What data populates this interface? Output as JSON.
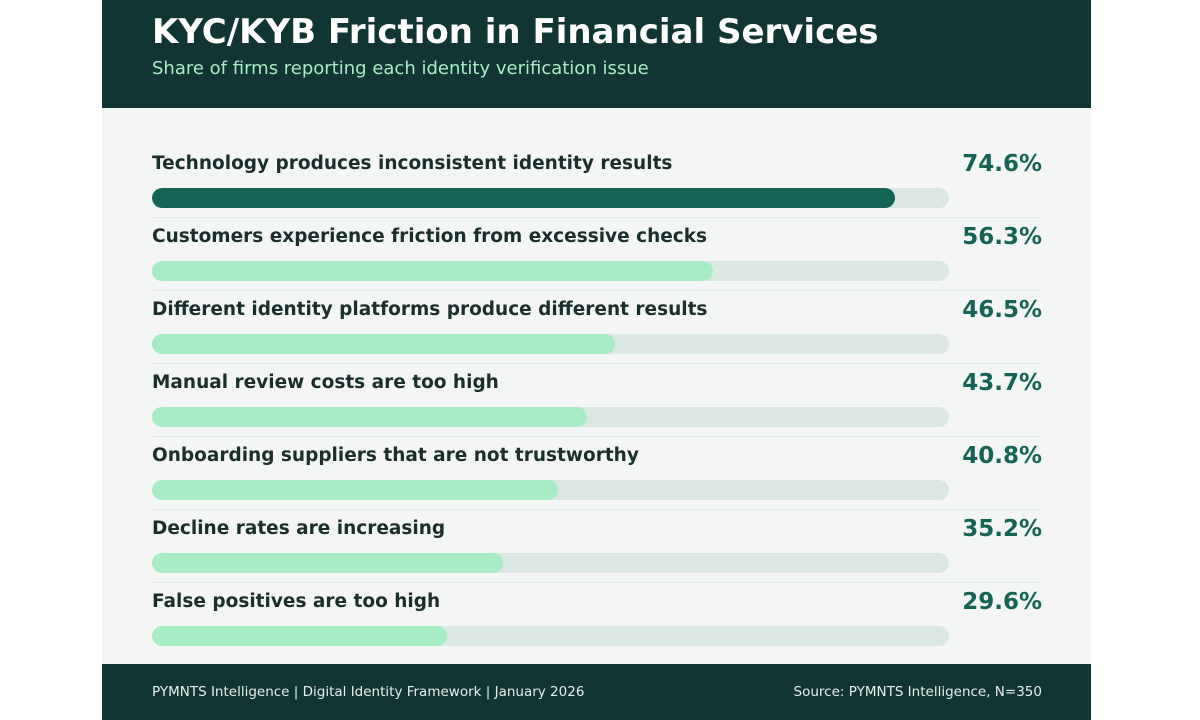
{
  "header": {
    "title": "KYC/KYB Friction in Financial Services",
    "subtitle": "Share of firms reporting each identity verification issue"
  },
  "chart_data": {
    "type": "bar",
    "orientation": "horizontal",
    "title": "KYC/KYB Friction in Financial Services",
    "subtitle": "Share of firms reporting each identity verification issue",
    "xlim": [
      0,
      80
    ],
    "unit": "%",
    "grid": false,
    "legend": "none",
    "categories": [
      "Technology produces inconsistent identity results",
      "Customers experience friction from excessive checks",
      "Different identity platforms produce different results",
      "Manual review costs are too high",
      "Onboarding suppliers that are not trustworthy",
      "Decline rates are increasing",
      "False positives are too high"
    ],
    "values": [
      74.6,
      56.3,
      46.5,
      43.7,
      40.8,
      35.2,
      29.6
    ],
    "value_labels": [
      "74.6%",
      "56.3%",
      "46.5%",
      "43.7%",
      "40.8%",
      "35.2%",
      "29.6%"
    ],
    "colors": {
      "highlight": "#146355",
      "bar": "#a8ecc6",
      "track": "#dce7e4",
      "label": "#1b2e2c",
      "value": "#146355"
    }
  },
  "footer": {
    "left": "PYMNTS Intelligence | Digital Identity Framework | January 2026",
    "right": "Source: PYMNTS Intelligence, N=350"
  },
  "colors": {
    "header_bg": "#103533",
    "subtitle": "#a8ecc6",
    "panel_bg": "#f3f6f5"
  }
}
